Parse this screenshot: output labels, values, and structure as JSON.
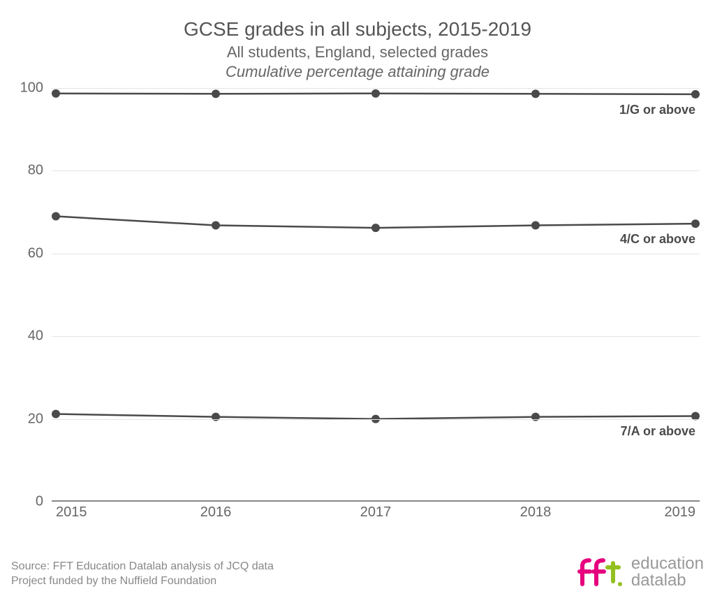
{
  "title": "GCSE grades in all subjects, 2015-2019",
  "subtitle": "All students, England, selected grades",
  "subtitle_italic": "Cumulative percentage attaining grade",
  "chart": {
    "type": "line",
    "x_categories": [
      "2015",
      "2016",
      "2017",
      "2018",
      "2019"
    ],
    "ylim": [
      0,
      100
    ],
    "ytick_step": 20,
    "yticks": [
      0,
      20,
      40,
      60,
      80,
      100
    ],
    "grid_color": "#e4e4e4",
    "axis_color": "#888888",
    "background_color": "#ffffff",
    "line_color": "#4a4a4a",
    "line_width": 2.5,
    "marker_radius": 6,
    "label_fontsize": 20,
    "series_label_fontsize": 18,
    "title_fontsize": 28,
    "subtitle_fontsize": 22,
    "series": [
      {
        "name": "1/G or above",
        "label": "1/G or above",
        "values": [
          98.7,
          98.6,
          98.7,
          98.6,
          98.5
        ]
      },
      {
        "name": "4/C or above",
        "label": "4/C or above",
        "values": [
          69.0,
          66.8,
          66.2,
          66.8,
          67.2
        ]
      },
      {
        "name": "7/A or above",
        "label": "7/A or above",
        "values": [
          21.2,
          20.5,
          20.0,
          20.5,
          20.7
        ]
      }
    ]
  },
  "footer": {
    "source_line1": "Source: FFT Education Datalab analysis of JCQ data",
    "source_line2": "Project funded by the Nuffield Foundation",
    "logo_top": "education",
    "logo_bottom": "datalab",
    "logo_fft_color_f1": "#e6007e",
    "logo_fft_color_f2": "#e6007e",
    "logo_fft_color_t": "#93c01f"
  }
}
